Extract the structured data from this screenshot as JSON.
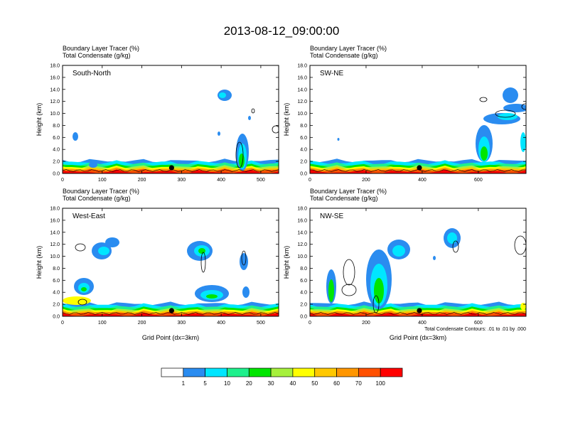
{
  "main_title": "2013-08-12_09:00:00",
  "colorbar": {
    "labels": [
      "1",
      "5",
      "10",
      "20",
      "30",
      "40",
      "50",
      "60",
      "70",
      "100"
    ],
    "colors": [
      "#ffffff",
      "#2a8cf0",
      "#00e6ff",
      "#1ef08c",
      "#00e600",
      "#a6f03c",
      "#ffff00",
      "#ffc800",
      "#ff9600",
      "#ff5000",
      "#ff0000"
    ]
  },
  "chart_data": [
    {
      "type": "heatmap",
      "panel": "South-North",
      "title_lines": [
        "Boundary Layer Tracer   (%)",
        "Total Condensate   (g/kg)"
      ],
      "ylabel": "Height (km)",
      "xlabel": "",
      "xlim": [
        0,
        545
      ],
      "ylim": [
        0,
        18
      ],
      "xticks": [
        0,
        100,
        200,
        300,
        400,
        500
      ],
      "yticks": [
        "0.0",
        "2.0",
        "4.0",
        "6.0",
        "8.0",
        "10.0",
        "12.0",
        "14.0",
        "16.0",
        "18.0"
      ],
      "marker_x": 275,
      "note": ""
    },
    {
      "type": "heatmap",
      "panel": "SW-NE",
      "title_lines": [
        "Boundary Layer Tracer   (%)",
        "Total Condensate   (g/kg)"
      ],
      "ylabel": "Height (km)",
      "xlabel": "",
      "xlim": [
        0,
        770
      ],
      "ylim": [
        0,
        18
      ],
      "xticks": [
        0,
        200,
        400,
        600
      ],
      "yticks": [
        "0.0",
        "2.0",
        "4.0",
        "6.0",
        "8.0",
        "10.0",
        "12.0",
        "14.0",
        "16.0",
        "18.0"
      ],
      "marker_x": 390,
      "note": ""
    },
    {
      "type": "heatmap",
      "panel": "West-East",
      "title_lines": [
        "Boundary Layer Tracer   (%)",
        "Total Condensate   (g/kg)"
      ],
      "ylabel": "Height (km)",
      "xlabel": "Grid Point (dx=3km)",
      "xlim": [
        0,
        545
      ],
      "ylim": [
        0,
        18
      ],
      "xticks": [
        0,
        100,
        200,
        300,
        400,
        500
      ],
      "yticks": [
        "0.0",
        "2.0",
        "4.0",
        "6.0",
        "8.0",
        "10.0",
        "12.0",
        "14.0",
        "16.0",
        "18.0"
      ],
      "marker_x": 275,
      "note": ""
    },
    {
      "type": "heatmap",
      "panel": "NW-SE",
      "title_lines": [
        "Boundary Layer Tracer   (%)",
        "Total Condensate   (g/kg)"
      ],
      "ylabel": "Height (km)",
      "xlabel": "Grid Point (dx=3km)",
      "xlim": [
        0,
        770
      ],
      "ylim": [
        0,
        18
      ],
      "xticks": [
        0,
        200,
        400,
        600
      ],
      "yticks": [
        "0.0",
        "2.0",
        "4.0",
        "6.0",
        "8.0",
        "10.0",
        "12.0",
        "14.0",
        "16.0",
        "18.0"
      ],
      "marker_x": 390,
      "note": "Total Condensate Contours: .01 to .01 by .000"
    }
  ]
}
